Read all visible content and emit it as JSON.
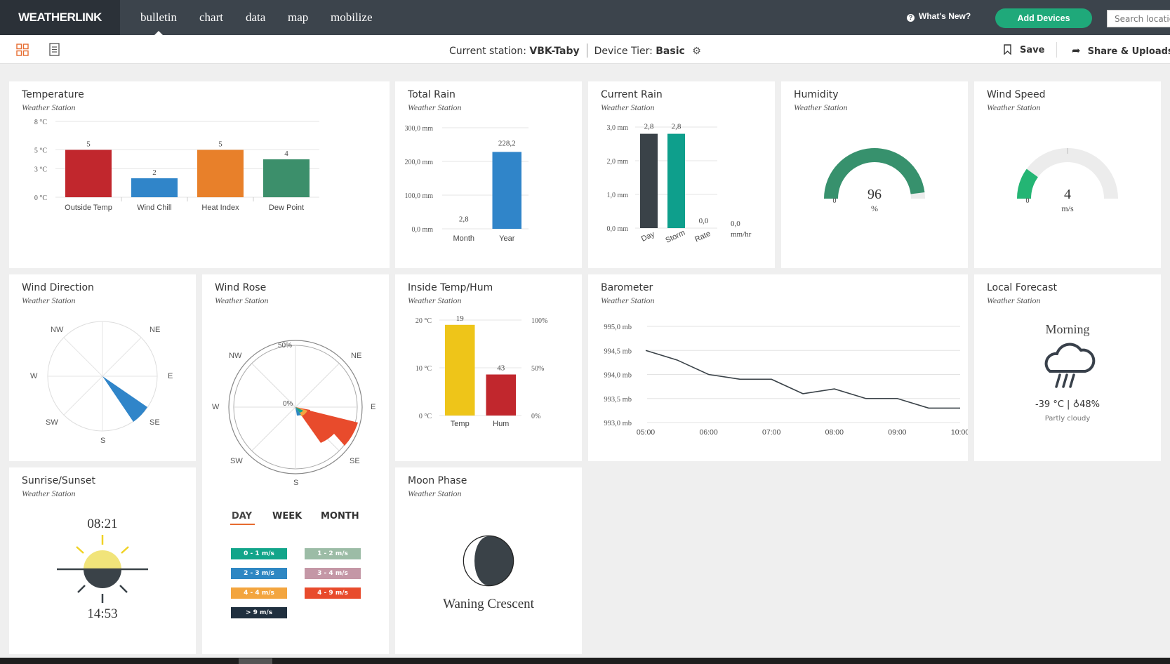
{
  "brand": "WEATHERLINK",
  "nav": [
    "bulletin",
    "chart",
    "data",
    "map",
    "mobilize"
  ],
  "header": {
    "whats_new": "What's New?",
    "add_devices": "Add Devices",
    "search_placeholder": "Search locatio"
  },
  "subbar": {
    "station_label": "Current station:",
    "station": "VBK-Taby",
    "tier_label": "Device Tier:",
    "tier": "Basic",
    "save": "Save",
    "share": "Share & Uploads"
  },
  "colors": {
    "accent": "#1fa97a",
    "nav_bg": "#3c444c",
    "red": "#c1272d",
    "blue": "#3085c9",
    "orange": "#e8802a",
    "green": "#3c8f6b",
    "teal": "#0e9f8c",
    "dark": "#3a4248",
    "yellow": "#eec519"
  },
  "cards": {
    "temperature": {
      "title": "Temperature",
      "sub": "Weather Station"
    },
    "total_rain": {
      "title": "Total Rain",
      "sub": "Weather Station"
    },
    "current_rain": {
      "title": "Current Rain",
      "sub": "Weather Station"
    },
    "humidity": {
      "title": "Humidity",
      "sub": "Weather Station"
    },
    "wind_speed": {
      "title": "Wind Speed",
      "sub": "Weather Station"
    },
    "wind_direction": {
      "title": "Wind Direction",
      "sub": "Weather Station"
    },
    "wind_rose": {
      "title": "Wind Rose",
      "sub": "Weather Station"
    },
    "inside": {
      "title": "Inside Temp/Hum",
      "sub": "Weather Station"
    },
    "barometer": {
      "title": "Barometer",
      "sub": "Weather Station"
    },
    "forecast": {
      "title": "Local Forecast",
      "sub": "Weather Station"
    },
    "sunrise": {
      "title": "Sunrise/Sunset",
      "sub": "Weather Station"
    },
    "moon": {
      "title": "Moon Phase",
      "sub": "Weather Station"
    }
  },
  "chart_data": [
    {
      "type": "bar",
      "id": "temperature",
      "categories": [
        "Outside Temp",
        "Wind Chill",
        "Heat Index",
        "Dew Point"
      ],
      "values": [
        5,
        2,
        5,
        4
      ],
      "yticks": [
        "0 °C",
        "3 °C",
        "5 °C",
        "8 °C"
      ],
      "ytick_values": [
        0,
        3,
        5,
        8
      ],
      "ylim": [
        0,
        8
      ],
      "colors": [
        "#c1272d",
        "#3085c9",
        "#e8802a",
        "#3c8f6b"
      ]
    },
    {
      "type": "bar",
      "id": "total_rain",
      "categories": [
        "Month",
        "Year"
      ],
      "values": [
        2.8,
        228.2
      ],
      "value_labels": [
        "2,8",
        "228,2"
      ],
      "yticks": [
        "0,0 mm",
        "100,0 mm",
        "200,0 mm",
        "300,0 mm"
      ],
      "ytick_values": [
        0,
        100,
        200,
        300
      ],
      "ylim": [
        0,
        300
      ]
    },
    {
      "type": "bar",
      "id": "current_rain",
      "categories": [
        "Day",
        "Storm",
        "Rate"
      ],
      "values": [
        2.8,
        2.8,
        0
      ],
      "value_labels": [
        "2,8",
        "2,8",
        "0,0"
      ],
      "yticks": [
        "0,0 mm",
        "1,0 mm",
        "2,0 mm",
        "3,0 mm"
      ],
      "ytick_values": [
        0,
        1,
        2,
        3
      ],
      "ylim": [
        0,
        3
      ],
      "extra_value": "0,0",
      "extra_unit": "mm/hr"
    },
    {
      "type": "gauge",
      "id": "humidity",
      "value": 96,
      "min": 0,
      "max": 100,
      "unit": "%",
      "min_label": "0"
    },
    {
      "type": "gauge",
      "id": "wind_speed",
      "value": 4,
      "min": 0,
      "unit": "m/s",
      "min_label": "0"
    },
    {
      "type": "bar",
      "id": "inside",
      "categories": [
        "Temp",
        "Hum"
      ],
      "values": [
        19,
        43
      ],
      "yticks_left": [
        "0 °C",
        "10 °C",
        "20 °C"
      ],
      "yticks_right": [
        "0%",
        "50%",
        "100%"
      ],
      "ylim_left": [
        0,
        20
      ],
      "ylim_right": [
        0,
        100
      ]
    },
    {
      "type": "line",
      "id": "barometer",
      "x": [
        "05:00",
        "05:30",
        "06:00",
        "06:30",
        "07:00",
        "07:30",
        "08:00",
        "08:30",
        "09:00",
        "09:30",
        "10:00"
      ],
      "y": [
        994.5,
        994.3,
        994.0,
        993.9,
        993.9,
        993.6,
        993.7,
        993.5,
        993.5,
        993.3,
        993.3
      ],
      "yticks": [
        "993,0 mb",
        "993,5 mb",
        "994,0 mb",
        "994,5 mb",
        "995,0 mb"
      ],
      "ytick_values": [
        993,
        993.5,
        994,
        994.5,
        995
      ],
      "xticks": [
        "05:00",
        "06:00",
        "07:00",
        "08:00",
        "09:00",
        "10:00"
      ],
      "ylim": [
        993,
        995
      ]
    }
  ],
  "wind_direction": {
    "labels": [
      "NW",
      "NE",
      "W",
      "E",
      "SW",
      "SE",
      "S"
    ],
    "direction": "SE"
  },
  "wind_rose": {
    "labels": [
      "NW",
      "NE",
      "W",
      "E",
      "SW",
      "SE",
      "S"
    ],
    "rings": [
      "50%",
      "0%"
    ],
    "tabs": [
      "DAY",
      "WEEK",
      "MONTH"
    ],
    "legend": [
      {
        "label": "0 - 1 m/s",
        "color": "#12a58a"
      },
      {
        "label": "1 - 2 m/s",
        "color": "#9cbca6"
      },
      {
        "label": "2 - 3 m/s",
        "color": "#2e87c3"
      },
      {
        "label": "3 - 4 m/s",
        "color": "#c497a6"
      },
      {
        "label": "4 - 4 m/s",
        "color": "#f3a53f"
      },
      {
        "label": "4 - 9 m/s",
        "color": "#e84b2c"
      },
      {
        "label": "> 9 m/s",
        "color": "#20303f"
      }
    ]
  },
  "forecast": {
    "period": "Morning",
    "temp": "-39 °C",
    "humidity": "48%",
    "desc": "Partly cloudy"
  },
  "sun": {
    "sunrise": "08:21",
    "sunset": "14:53"
  },
  "moon": {
    "phase": "Waning Crescent"
  }
}
